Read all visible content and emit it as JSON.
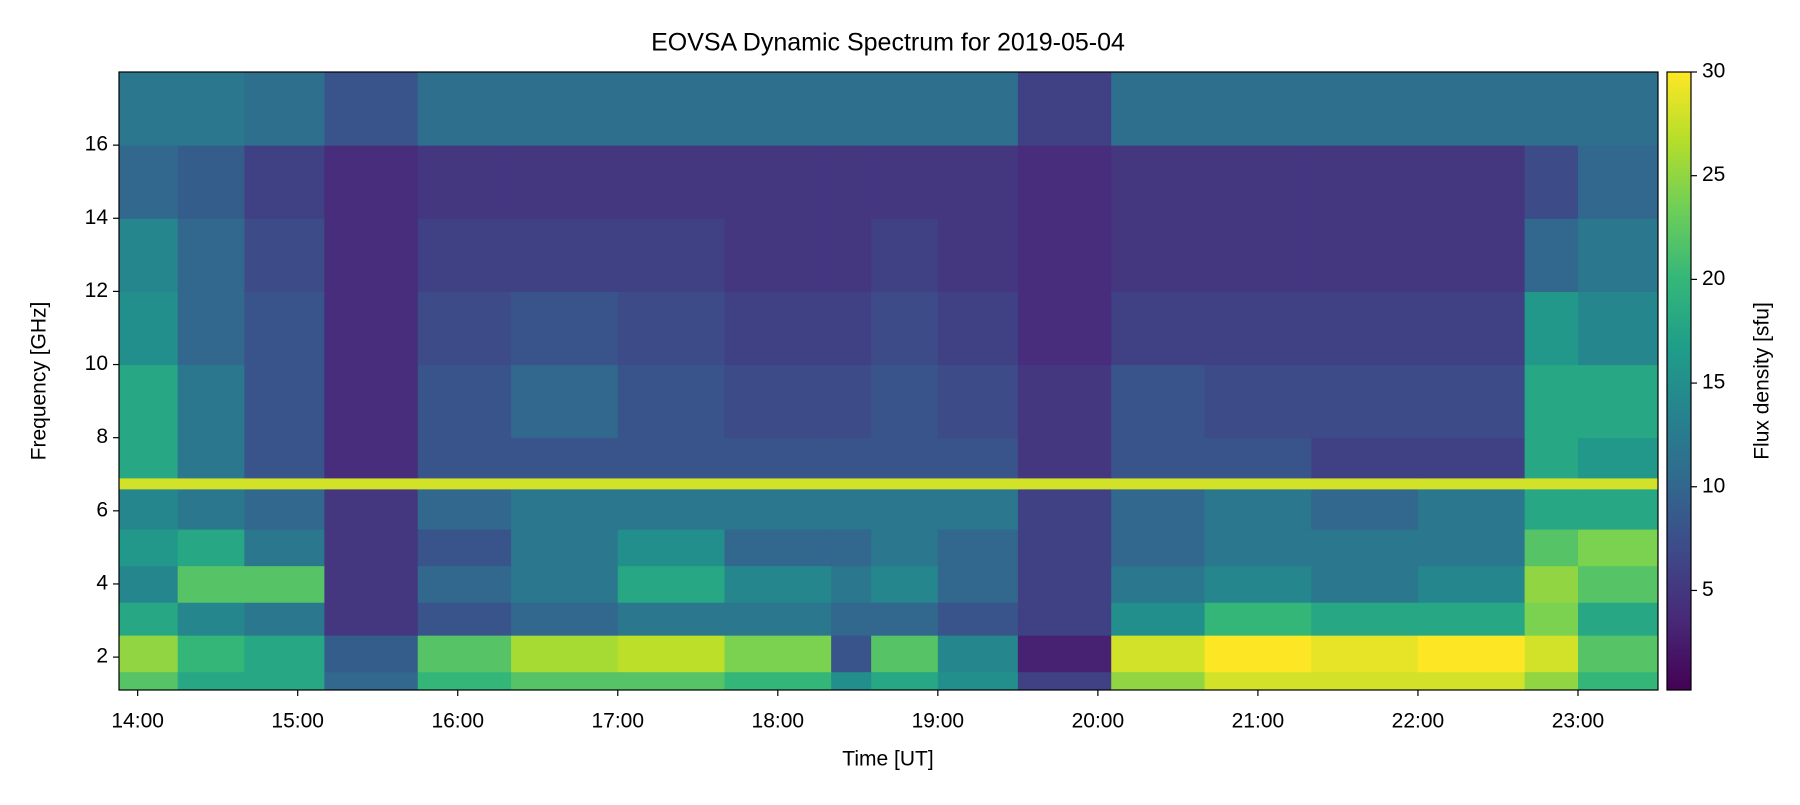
{
  "chart_data": {
    "type": "heatmap",
    "title": "EOVSA Dynamic Spectrum for 2019-05-04",
    "x_label": "Time [UT]",
    "y_label": "Frequency [GHz]",
    "colorbar_label": "Flux density [sfu]",
    "colormap": "viridis",
    "xlim": [
      "13:53",
      "23:30"
    ],
    "xticks": [
      "14:00",
      "15:00",
      "16:00",
      "17:00",
      "18:00",
      "19:00",
      "20:00",
      "21:00",
      "22:00",
      "23:00"
    ],
    "ylim": [
      1.1,
      18
    ],
    "yticks": [
      2,
      4,
      6,
      8,
      10,
      12,
      14,
      16
    ],
    "clim": [
      0.2,
      30
    ],
    "cticks": [
      5,
      10,
      15,
      20,
      25,
      30
    ],
    "x_bins": [
      "13:53",
      "14:15",
      "14:40",
      "15:10",
      "15:45",
      "16:20",
      "17:00",
      "17:40",
      "18:20",
      "18:35",
      "19:00",
      "19:30",
      "20:05",
      "20:40",
      "21:20",
      "22:00",
      "22:40",
      "23:00",
      "23:30"
    ],
    "y_bins": [
      1.1,
      1.6,
      2.6,
      3.5,
      4.5,
      5.5,
      6.6,
      6.9,
      8,
      10,
      12,
      14,
      16,
      18
    ],
    "values": [
      [
        22,
        18,
        18,
        10,
        20,
        22,
        22,
        20,
        15,
        18,
        15,
        6,
        25,
        28,
        28,
        28,
        25,
        20
      ],
      [
        25,
        20,
        18,
        9,
        22,
        26,
        27,
        24,
        8,
        22,
        14,
        3,
        28,
        30,
        29,
        30,
        28,
        22
      ],
      [
        18,
        14,
        12,
        5,
        8,
        10,
        12,
        12,
        10,
        10,
        8,
        6,
        15,
        20,
        18,
        18,
        24,
        18
      ],
      [
        14,
        22,
        22,
        5,
        10,
        12,
        18,
        14,
        12,
        14,
        10,
        6,
        12,
        14,
        12,
        14,
        25,
        22
      ],
      [
        16,
        18,
        12,
        5,
        8,
        12,
        15,
        10,
        10,
        12,
        10,
        6,
        10,
        12,
        12,
        12,
        22,
        24
      ],
      [
        14,
        12,
        10,
        5,
        10,
        12,
        12,
        12,
        12,
        12,
        12,
        6,
        10,
        12,
        10,
        12,
        18,
        18
      ],
      [
        28,
        28,
        28,
        28,
        28,
        28,
        28,
        28,
        28,
        28,
        28,
        28,
        28,
        28,
        28,
        28,
        28,
        28
      ],
      [
        18,
        12,
        8,
        4,
        8,
        8,
        8,
        8,
        8,
        8,
        8,
        5,
        8,
        8,
        6,
        6,
        18,
        16
      ],
      [
        18,
        12,
        8,
        4,
        8,
        10,
        8,
        7,
        7,
        8,
        7,
        5,
        8,
        7,
        7,
        7,
        18,
        18
      ],
      [
        15,
        10,
        8,
        4,
        7,
        8,
        7,
        6,
        6,
        7,
        6,
        4,
        6,
        6,
        6,
        6,
        16,
        14
      ],
      [
        14,
        10,
        7,
        4,
        6,
        6,
        6,
        5,
        5,
        6,
        5,
        4,
        5,
        5,
        5,
        5,
        10,
        12
      ],
      [
        10,
        9,
        6,
        4,
        5,
        5,
        5,
        5,
        5,
        5,
        5,
        4,
        5,
        5,
        5,
        5,
        7,
        10
      ],
      [
        12,
        12,
        11,
        8,
        11,
        11,
        11,
        11,
        11,
        11,
        11,
        6,
        11,
        11,
        11,
        11,
        11,
        11
      ]
    ]
  }
}
